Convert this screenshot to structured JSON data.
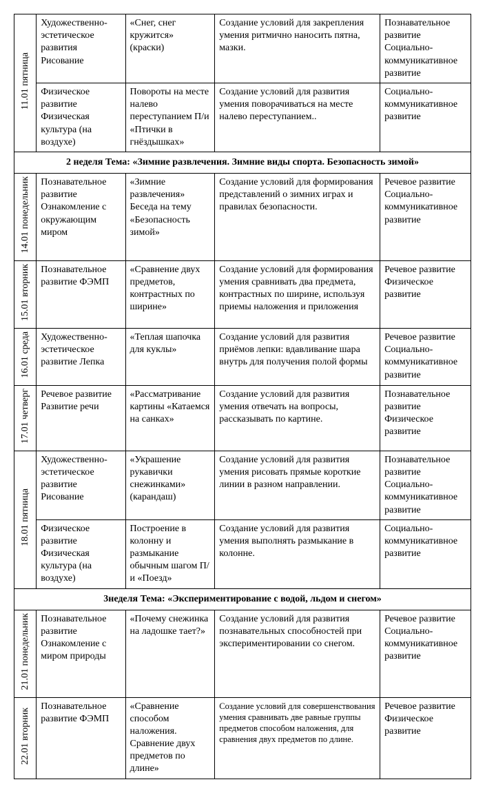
{
  "rows": [
    {
      "date": "11.01",
      "day": "пятница",
      "entries": [
        {
          "c1": "Художественно-эстетическое развития Рисование",
          "c2": "«Снег, снег  кружится» (краски)",
          "c3": "Создание условий для закрепления умения ритмично наносить пятна, мазки.",
          "c4": "Познавательное развитие Социально-коммуникативное развитие"
        },
        {
          "c1": "Физическое развитие Физическая культура (на воздухе)",
          "c2": "Повороты на месте налево переступанием П/и «Птички в гнёздышках»",
          "c3": "Создание условий для развития умения поворачиваться на месте налево переступанием..",
          "c4": "Социально-коммуникативное развитие"
        }
      ]
    }
  ],
  "theme2": "2 неделя  Тема: «Зимние развлечения. Зимние виды спорта. Безопасность зимой»",
  "week2": [
    {
      "date": "14.01",
      "day": "понедельник",
      "c1": "Познавательное  развитие Ознакомление с окружающим миром",
      "c2": "«Зимние развлечения»  Беседа на тему  «Безопасность зимой»",
      "c3": "Создание условий для формирования представлений о зимних играх и правилах безопасности.",
      "c4": "Речевое развитие Социально-коммуникативное развитие"
    },
    {
      "date": "15.01",
      "day": "вторник",
      "c1": "Познавательное  развитие ФЭМП",
      "c2": "«Сравнение двух предметов, контрастных по ширине»",
      "c3": "Создание условий для формирования умения сравнивать два предмета, контрастных по ширине, используя приемы наложения и приложения",
      "c4": "Речевое развитие Физическое развитие"
    },
    {
      "date": "16.01",
      "day": "среда",
      "c1": "Художественно-эстетическое развитие Лепка",
      "c2": "«Теплая шапочка для куклы»",
      "c3": "Создание условий для развития приёмов лепки: вдавливание шара внутрь для получения  полой формы",
      "c4": "Речевое развитие Социально-коммуникативное развитие"
    },
    {
      "date": "17.01",
      "day": "четверг",
      "c1": " Речевое развитие Развитие речи",
      "c2": "«Рассматривание картины «Катаемся на санках»",
      "c3": "Создание условий для развития умения отвечать на вопросы, рассказывать по картине.",
      "c4": "Познавательное развитие Физическое развитие"
    }
  ],
  "row1801": {
    "date": "18.01",
    "day": "пятница",
    "entries": [
      {
        "c1": "Художественно-эстетическое развитие Рисование",
        "c2": "«Украшение рукавички снежинками» (карандаш)",
        "c3": "Создание условий для развития умения рисовать прямые короткие линии в разном направлении.",
        "c4": "Познавательное развитие Социально-коммуникативное развитие"
      },
      {
        "c1": "Физическое развитие Физическая культура (на воздухе)",
        "c2": "Построение в колонну и размыкание обычным шагом П/и «Поезд»",
        "c3": "Создание условий для развития умения выполнять размыкание в колонне.",
        "c4": "Социально-коммуникативное развитие"
      }
    ]
  },
  "theme3": "3неделя  Тема: «Экспериментирование с водой, льдом и снегом»",
  "week3": [
    {
      "date": "21.01",
      "day": "понедельник",
      "c1": "Познавательное  развитие Ознакомление с миром природы",
      "c2": "«Почему снежинка на ладошке тает?»",
      "c3": "Создание условий для развития познавательных способностей при экспериментировании со снегом.",
      "c4": "Речевое развитие Социально-коммуникативное развитие"
    },
    {
      "date": "22.01",
      "day": "вторник",
      "c1": "Познавательное  развитие ФЭМП",
      "c2": "«Сравнение способом наложения. Сравнение двух предметов по длине»",
      "c3": "Создание условий для совершенствования умения сравнивать две равные группы предметов способом наложения, для сравнения двух предметов по длине.",
      "c3small": true,
      "c4": "Речевое развитие Физическое развитие"
    }
  ]
}
